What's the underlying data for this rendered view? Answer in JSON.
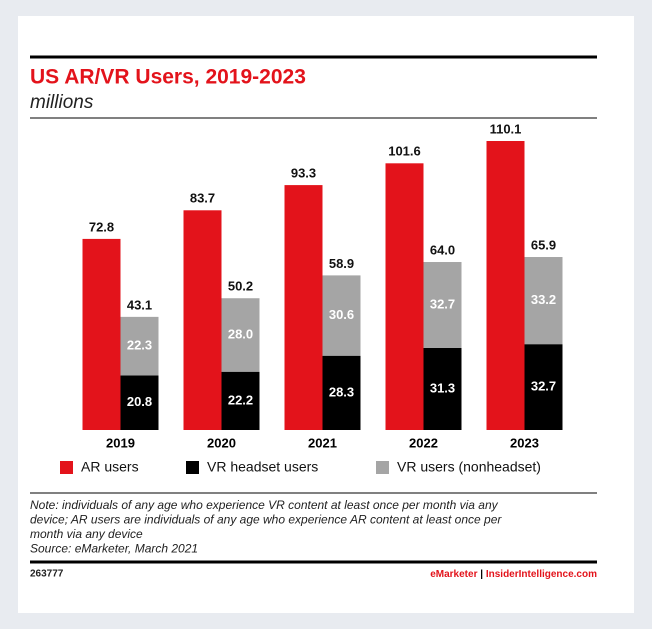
{
  "chart_data": {
    "type": "bar",
    "title": "US AR/VR Users, 2019-2023",
    "subtitle": "millions",
    "categories": [
      "2019",
      "2020",
      "2021",
      "2022",
      "2023"
    ],
    "series": [
      {
        "name": "AR users",
        "color": "#e3131b",
        "values": [
          72.8,
          83.7,
          93.3,
          101.6,
          110.1
        ]
      },
      {
        "name": "VR headset users",
        "color": "#000000",
        "stack": "vr",
        "values": [
          20.8,
          22.2,
          28.3,
          31.3,
          32.7
        ]
      },
      {
        "name": "VR users (nonheadset)",
        "color": "#a5a5a5",
        "stack": "vr",
        "values": [
          22.3,
          28.0,
          30.6,
          32.7,
          33.2
        ],
        "value_labels": [
          "22.3",
          "28.0",
          "30.6",
          "32.7",
          "33.2"
        ]
      }
    ],
    "stack_totals": {
      "values": [
        43.1,
        50.2,
        58.9,
        64.0,
        65.9
      ],
      "value_labels": [
        "43.1",
        "50.2",
        "58.9",
        "64.0",
        "65.9"
      ]
    },
    "legend": "bottom",
    "note": [
      "Note: individuals of any age who experience VR content at least once per month via any",
      "device; AR users are individuals of any age who experience AR content at least once per",
      "month via any device",
      "Source: eMarketer, March 2021"
    ],
    "footer": {
      "id": "263777",
      "brand": "eMarketer",
      "separator": "|",
      "site": "InsiderIntelligence.com"
    }
  }
}
